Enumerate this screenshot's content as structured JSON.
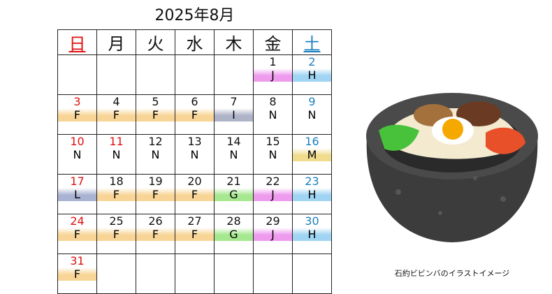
{
  "header": {
    "title": "2025年8月"
  },
  "table": {
    "headers": [
      {
        "text": "日",
        "color": "#e01010"
      },
      {
        "text": "月",
        "color": "#111"
      },
      {
        "text": "火",
        "color": "#111"
      },
      {
        "text": "水",
        "color": "#111"
      },
      {
        "text": "木",
        "color": "#111"
      },
      {
        "text": "金",
        "color": "#111"
      },
      {
        "text": "土",
        "color": "#1a7fc0"
      }
    ],
    "code_colors": {
      "F": "#f8d596",
      "J": "#ee9bee",
      "H": "#9fd4f2",
      "I": "#aeb3c8",
      "N": "#ffffff",
      "M": "#f0dc8c",
      "L": "#a8b2d2",
      "G": "#a6e890"
    },
    "weeks": [
      [
        null,
        null,
        null,
        null,
        null,
        {
          "day": 1,
          "code": "J",
          "day_color": "#111"
        },
        {
          "day": 2,
          "code": "H",
          "day_color": "#1a7fc0"
        }
      ],
      [
        {
          "day": 3,
          "code": "F",
          "day_color": "#e01010"
        },
        {
          "day": 4,
          "code": "F",
          "day_color": "#111"
        },
        {
          "day": 5,
          "code": "F",
          "day_color": "#111"
        },
        {
          "day": 6,
          "code": "F",
          "day_color": "#111"
        },
        {
          "day": 7,
          "code": "I",
          "day_color": "#111"
        },
        {
          "day": 8,
          "code": "N",
          "day_color": "#111"
        },
        {
          "day": 9,
          "code": "N",
          "day_color": "#1a7fc0"
        }
      ],
      [
        {
          "day": 10,
          "code": "N",
          "day_color": "#e01010"
        },
        {
          "day": 11,
          "code": "N",
          "day_color": "#e01010"
        },
        {
          "day": 12,
          "code": "N",
          "day_color": "#111"
        },
        {
          "day": 13,
          "code": "N",
          "day_color": "#111"
        },
        {
          "day": 14,
          "code": "N",
          "day_color": "#111"
        },
        {
          "day": 15,
          "code": "N",
          "day_color": "#111"
        },
        {
          "day": 16,
          "code": "M",
          "day_color": "#1a7fc0"
        }
      ],
      [
        {
          "day": 17,
          "code": "L",
          "day_color": "#e01010"
        },
        {
          "day": 18,
          "code": "F",
          "day_color": "#111"
        },
        {
          "day": 19,
          "code": "F",
          "day_color": "#111"
        },
        {
          "day": 20,
          "code": "F",
          "day_color": "#111"
        },
        {
          "day": 21,
          "code": "G",
          "day_color": "#111"
        },
        {
          "day": 22,
          "code": "J",
          "day_color": "#111"
        },
        {
          "day": 23,
          "code": "H",
          "day_color": "#1a7fc0"
        }
      ],
      [
        {
          "day": 24,
          "code": "F",
          "day_color": "#e01010"
        },
        {
          "day": 25,
          "code": "F",
          "day_color": "#111"
        },
        {
          "day": 26,
          "code": "F",
          "day_color": "#111"
        },
        {
          "day": 27,
          "code": "F",
          "day_color": "#111"
        },
        {
          "day": 28,
          "code": "G",
          "day_color": "#111"
        },
        {
          "day": 29,
          "code": "J",
          "day_color": "#111"
        },
        {
          "day": 30,
          "code": "H",
          "day_color": "#1a7fc0"
        }
      ],
      [
        {
          "day": 31,
          "code": "F",
          "day_color": "#e01010"
        },
        null,
        null,
        null,
        null,
        null,
        null
      ]
    ]
  },
  "image": {
    "caption": "石約ビビンバのイラストイメージ"
  }
}
